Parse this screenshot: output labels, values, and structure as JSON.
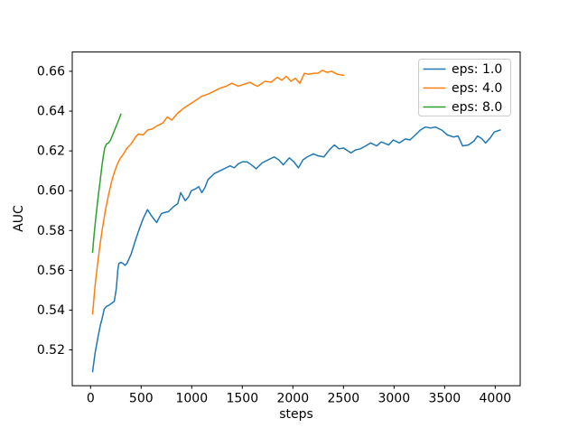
{
  "chart_data": {
    "type": "line",
    "title": "",
    "xlabel": "steps",
    "ylabel": "AUC",
    "xlim": [
      -181,
      4247
    ],
    "ylim": [
      0.502,
      0.6697
    ],
    "xticks": [
      0,
      500,
      1000,
      1500,
      2000,
      2500,
      3000,
      3500,
      4000
    ],
    "yticks": [
      0.52,
      0.54,
      0.56,
      0.58,
      0.6,
      0.62,
      0.64,
      0.66
    ],
    "grid": false,
    "background": "#ffffff",
    "axis_color": "#000000",
    "legend": {
      "position": "upper right",
      "border_color": "#cccccc",
      "entries": [
        "eps: 1.0",
        "eps: 4.0",
        "eps: 8.0"
      ]
    },
    "series": [
      {
        "name": "eps: 1.0",
        "color": "#1f77b4",
        "points": [
          [
            20,
            0.509
          ],
          [
            45,
            0.5185
          ],
          [
            70,
            0.5255
          ],
          [
            95,
            0.532
          ],
          [
            115,
            0.536
          ],
          [
            135,
            0.5405
          ],
          [
            160,
            0.542
          ],
          [
            185,
            0.5425
          ],
          [
            210,
            0.5435
          ],
          [
            235,
            0.5445
          ],
          [
            255,
            0.551
          ],
          [
            270,
            0.5605
          ],
          [
            280,
            0.5635
          ],
          [
            300,
            0.564
          ],
          [
            320,
            0.5635
          ],
          [
            340,
            0.5625
          ],
          [
            360,
            0.5635
          ],
          [
            400,
            0.568
          ],
          [
            440,
            0.5745
          ],
          [
            480,
            0.5805
          ],
          [
            520,
            0.586
          ],
          [
            563,
            0.5905
          ],
          [
            600,
            0.5875
          ],
          [
            653,
            0.584
          ],
          [
            700,
            0.5885
          ],
          [
            728,
            0.589
          ],
          [
            770,
            0.5895
          ],
          [
            820,
            0.592
          ],
          [
            862,
            0.5935
          ],
          [
            891,
            0.599
          ],
          [
            936,
            0.595
          ],
          [
            970,
            0.597
          ],
          [
            996,
            0.6
          ],
          [
            1040,
            0.601
          ],
          [
            1070,
            0.602
          ],
          [
            1100,
            0.599
          ],
          [
            1130,
            0.6015
          ],
          [
            1160,
            0.6055
          ],
          [
            1220,
            0.6085
          ],
          [
            1279,
            0.61
          ],
          [
            1339,
            0.6115
          ],
          [
            1380,
            0.6125
          ],
          [
            1420,
            0.6115
          ],
          [
            1460,
            0.6135
          ],
          [
            1500,
            0.6145
          ],
          [
            1547,
            0.6145
          ],
          [
            1590,
            0.613
          ],
          [
            1637,
            0.611
          ],
          [
            1696,
            0.614
          ],
          [
            1755,
            0.6155
          ],
          [
            1815,
            0.617
          ],
          [
            1860,
            0.6155
          ],
          [
            1905,
            0.613
          ],
          [
            1965,
            0.6165
          ],
          [
            2010,
            0.6145
          ],
          [
            2055,
            0.6115
          ],
          [
            2100,
            0.6155
          ],
          [
            2143,
            0.617
          ],
          [
            2203,
            0.6185
          ],
          [
            2250,
            0.6175
          ],
          [
            2307,
            0.617
          ],
          [
            2360,
            0.6205
          ],
          [
            2411,
            0.623
          ],
          [
            2456,
            0.621
          ],
          [
            2500,
            0.6215
          ],
          [
            2574,
            0.619
          ],
          [
            2620,
            0.6205
          ],
          [
            2664,
            0.621
          ],
          [
            2720,
            0.6225
          ],
          [
            2769,
            0.624
          ],
          [
            2828,
            0.6225
          ],
          [
            2873,
            0.6245
          ],
          [
            2947,
            0.623
          ],
          [
            2992,
            0.6255
          ],
          [
            3052,
            0.624
          ],
          [
            3111,
            0.626
          ],
          [
            3156,
            0.6255
          ],
          [
            3210,
            0.628
          ],
          [
            3260,
            0.6305
          ],
          [
            3310,
            0.632
          ],
          [
            3360,
            0.6315
          ],
          [
            3410,
            0.632
          ],
          [
            3470,
            0.6305
          ],
          [
            3528,
            0.628
          ],
          [
            3588,
            0.627
          ],
          [
            3633,
            0.6275
          ],
          [
            3678,
            0.6225
          ],
          [
            3737,
            0.623
          ],
          [
            3790,
            0.625
          ],
          [
            3826,
            0.6275
          ],
          [
            3870,
            0.626
          ],
          [
            3905,
            0.624
          ],
          [
            3950,
            0.6265
          ],
          [
            3991,
            0.6295
          ],
          [
            4050,
            0.6305
          ]
        ]
      },
      {
        "name": "eps: 4.0",
        "color": "#ff7f0e",
        "points": [
          [
            20,
            0.538
          ],
          [
            45,
            0.5525
          ],
          [
            70,
            0.5635
          ],
          [
            95,
            0.5735
          ],
          [
            120,
            0.582
          ],
          [
            150,
            0.591
          ],
          [
            180,
            0.5985
          ],
          [
            210,
            0.605
          ],
          [
            240,
            0.61
          ],
          [
            266,
            0.6135
          ],
          [
            290,
            0.616
          ],
          [
            320,
            0.618
          ],
          [
            355,
            0.621
          ],
          [
            400,
            0.6235
          ],
          [
            445,
            0.627
          ],
          [
            474,
            0.6285
          ],
          [
            519,
            0.628
          ],
          [
            564,
            0.6305
          ],
          [
            608,
            0.631
          ],
          [
            653,
            0.6325
          ],
          [
            713,
            0.634
          ],
          [
            758,
            0.637
          ],
          [
            803,
            0.6355
          ],
          [
            862,
            0.639
          ],
          [
            922,
            0.6415
          ],
          [
            981,
            0.6435
          ],
          [
            1041,
            0.6455
          ],
          [
            1100,
            0.6475
          ],
          [
            1160,
            0.6485
          ],
          [
            1220,
            0.65
          ],
          [
            1279,
            0.6515
          ],
          [
            1339,
            0.6525
          ],
          [
            1398,
            0.654
          ],
          [
            1458,
            0.6525
          ],
          [
            1517,
            0.6535
          ],
          [
            1577,
            0.6545
          ],
          [
            1607,
            0.6535
          ],
          [
            1651,
            0.6525
          ],
          [
            1726,
            0.655
          ],
          [
            1785,
            0.6545
          ],
          [
            1845,
            0.657
          ],
          [
            1890,
            0.6555
          ],
          [
            1935,
            0.6575
          ],
          [
            1980,
            0.655
          ],
          [
            2024,
            0.6565
          ],
          [
            2069,
            0.654
          ],
          [
            2114,
            0.659
          ],
          [
            2158,
            0.6585
          ],
          [
            2203,
            0.659
          ],
          [
            2248,
            0.659
          ],
          [
            2292,
            0.6605
          ],
          [
            2337,
            0.6595
          ],
          [
            2382,
            0.66
          ],
          [
            2441,
            0.6585
          ],
          [
            2500,
            0.658
          ]
        ]
      },
      {
        "name": "eps: 8.0",
        "color": "#2ca02c",
        "points": [
          [
            20,
            0.569
          ],
          [
            35,
            0.578
          ],
          [
            50,
            0.5855
          ],
          [
            65,
            0.5925
          ],
          [
            80,
            0.599
          ],
          [
            95,
            0.605
          ],
          [
            110,
            0.6115
          ],
          [
            125,
            0.617
          ],
          [
            140,
            0.6215
          ],
          [
            158,
            0.6235
          ],
          [
            178,
            0.624
          ],
          [
            198,
            0.6255
          ],
          [
            218,
            0.628
          ],
          [
            238,
            0.6305
          ],
          [
            258,
            0.633
          ],
          [
            278,
            0.6355
          ],
          [
            300,
            0.6385
          ]
        ]
      }
    ]
  }
}
